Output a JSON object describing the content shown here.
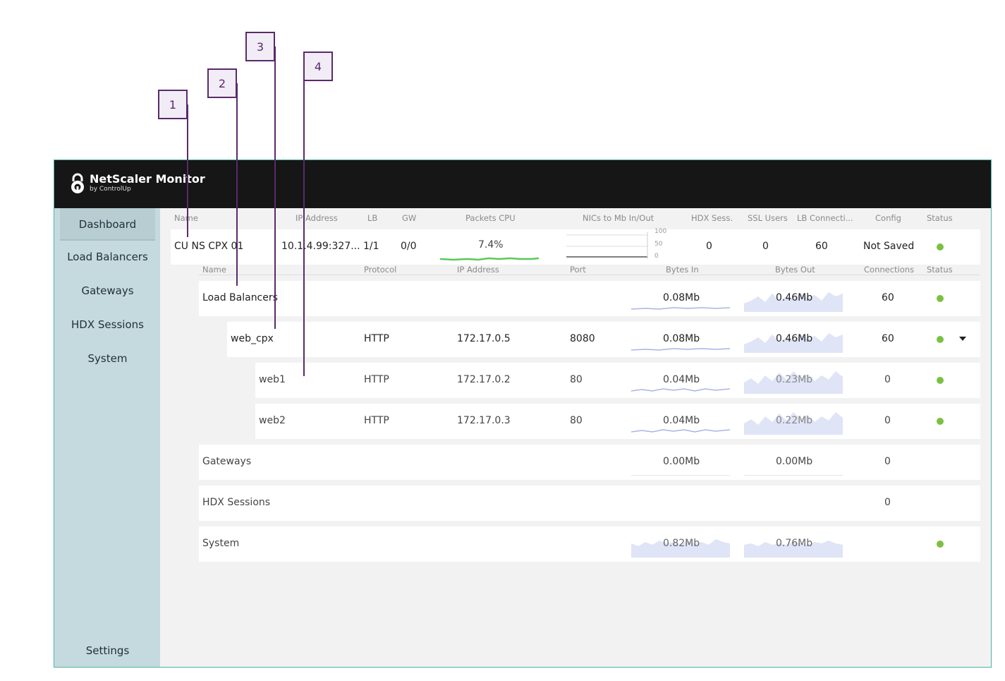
{
  "callouts": [
    "1",
    "2",
    "3",
    "4"
  ],
  "app": {
    "logo_title": "NetScaler Monitor",
    "logo_sub": "by ControlUp"
  },
  "sidebar": {
    "items": [
      {
        "label": "Dashboard"
      },
      {
        "label": "Load Balancers"
      },
      {
        "label": "Gateways"
      },
      {
        "label": "HDX Sessions"
      },
      {
        "label": "System"
      }
    ],
    "settings": "Settings"
  },
  "top_table": {
    "headers": [
      "Name",
      "IP Address",
      "LB",
      "GW",
      "Packets CPU",
      "NICs to Mb In/Out",
      "HDX Sess.",
      "SSL Users",
      "LB Connecti...",
      "Config",
      "Status"
    ],
    "row": {
      "name": "CU NS CPX 01",
      "ip": "10.1.4.99:327...",
      "lb": "1/1",
      "gw": "0/0",
      "cpu": "7.4%",
      "nic_ticks": [
        "100",
        "50",
        "0"
      ],
      "hdx": "0",
      "ssl": "0",
      "lbconn": "60",
      "config": "Not Saved"
    }
  },
  "sub_table": {
    "headers": [
      "Name",
      "Protocol",
      "IP Address",
      "Port",
      "Bytes In",
      "Bytes Out",
      "Connections",
      "Status"
    ],
    "rows": [
      {
        "name": "Load Balancers",
        "protocol": "",
        "ip": "",
        "port": "",
        "bytes_in": "0.08Mb",
        "bytes_out": "0.46Mb",
        "connections": "60"
      },
      {
        "name": "web_cpx",
        "protocol": "HTTP",
        "ip": "172.17.0.5",
        "port": "8080",
        "bytes_in": "0.08Mb",
        "bytes_out": "0.46Mb",
        "connections": "60"
      },
      {
        "name": "web1",
        "protocol": "HTTP",
        "ip": "172.17.0.2",
        "port": "80",
        "bytes_in": "0.04Mb",
        "bytes_out": "0.23Mb",
        "connections": "0"
      },
      {
        "name": "web2",
        "protocol": "HTTP",
        "ip": "172.17.0.3",
        "port": "80",
        "bytes_in": "0.04Mb",
        "bytes_out": "0.22Mb",
        "connections": "0"
      },
      {
        "name": "Gateways",
        "protocol": "",
        "ip": "",
        "port": "",
        "bytes_in": "0.00Mb",
        "bytes_out": "0.00Mb",
        "connections": "0"
      },
      {
        "name": "HDX Sessions",
        "protocol": "",
        "ip": "",
        "port": "",
        "bytes_in": "",
        "bytes_out": "",
        "connections": "0"
      },
      {
        "name": "System",
        "protocol": "",
        "ip": "",
        "port": "",
        "bytes_in": "0.82Mb",
        "bytes_out": "0.76Mb",
        "connections": ""
      }
    ]
  },
  "colors": {
    "status_ok": "#7bc043",
    "spark_fill": "#dfe4f6",
    "spark_line": "#aab4e4",
    "cpu_line": "#5ac85a",
    "accent_border": "#4bb3a6",
    "callout": "#5a2a6a"
  }
}
